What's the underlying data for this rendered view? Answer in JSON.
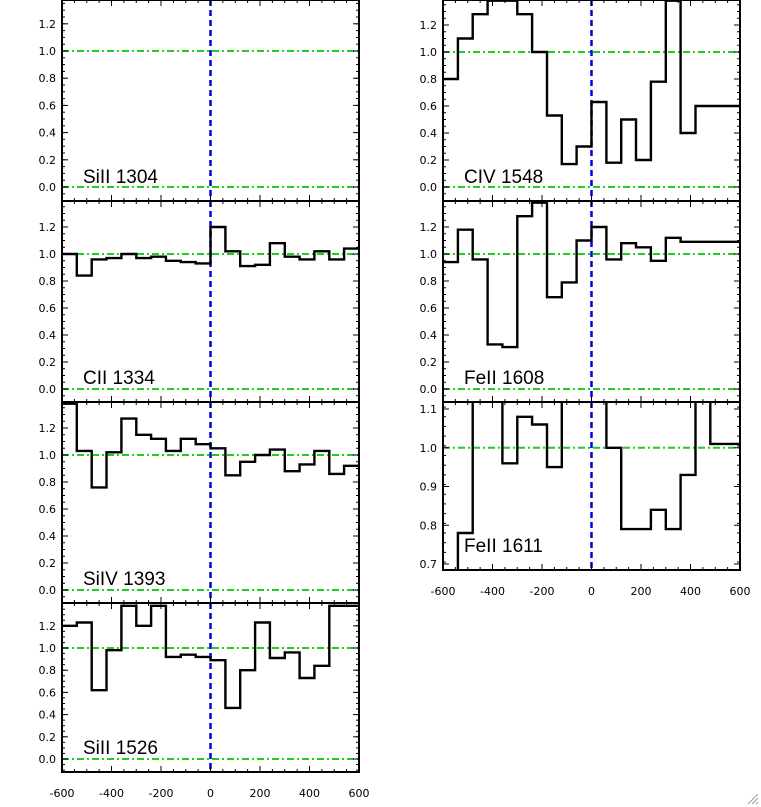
{
  "figure": {
    "corner_control": "resize-grip-icon"
  },
  "colors": {
    "spectrum": "#000000",
    "continuum": "#22cc22",
    "zero_velocity": "#0000dd"
  },
  "chart_data": [
    {
      "type": "line",
      "step": true,
      "label": "SiII 1304",
      "xlim": [
        -600,
        600
      ],
      "ylim": [
        -0.1,
        1.38
      ],
      "yticks": [
        "0.0",
        "0.2",
        "0.4",
        "0.6",
        "0.8",
        "1.0",
        "1.2"
      ],
      "ytick_values": [
        0,
        0.2,
        0.4,
        0.6,
        0.8,
        1.0,
        1.2
      ],
      "hlines": [
        0,
        1
      ],
      "vline": 0,
      "x": [],
      "y": []
    },
    {
      "type": "line",
      "step": true,
      "label": "CII 1334",
      "xlim": [
        -600,
        600
      ],
      "ylim": [
        -0.1,
        1.38
      ],
      "yticks": [
        "0.0",
        "0.2",
        "0.4",
        "0.6",
        "0.8",
        "1.0",
        "1.2"
      ],
      "ytick_values": [
        0,
        0.2,
        0.4,
        0.6,
        0.8,
        1.0,
        1.2
      ],
      "hlines": [
        0,
        1
      ],
      "vline": 0,
      "x": [
        -600,
        -540,
        -480,
        -420,
        -360,
        -300,
        -240,
        -180,
        -120,
        -60,
        0,
        60,
        120,
        180,
        240,
        300,
        360,
        420,
        480,
        540,
        600
      ],
      "y": [
        1.0,
        0.84,
        0.96,
        0.97,
        1.0,
        0.97,
        0.98,
        0.95,
        0.94,
        0.93,
        1.2,
        1.02,
        0.91,
        0.92,
        1.08,
        0.98,
        0.96,
        1.02,
        0.96,
        1.04,
        1.04
      ]
    },
    {
      "type": "line",
      "step": true,
      "label": "SiIV 1393",
      "xlim": [
        -600,
        600
      ],
      "ylim": [
        -0.1,
        1.38
      ],
      "yticks": [
        "0.0",
        "0.2",
        "0.4",
        "0.6",
        "0.8",
        "1.0",
        "1.2"
      ],
      "ytick_values": [
        0,
        0.2,
        0.4,
        0.6,
        0.8,
        1.0,
        1.2
      ],
      "hlines": [
        0,
        1
      ],
      "vline": 0,
      "x": [
        -600,
        -540,
        -480,
        -420,
        -360,
        -300,
        -240,
        -180,
        -120,
        -60,
        0,
        60,
        120,
        180,
        240,
        300,
        360,
        420,
        480,
        540,
        600
      ],
      "y": [
        1.38,
        1.03,
        0.76,
        1.02,
        1.27,
        1.15,
        1.12,
        1.03,
        1.12,
        1.08,
        1.05,
        0.85,
        0.95,
        1.0,
        1.04,
        0.88,
        0.93,
        1.03,
        0.86,
        0.92,
        0.92
      ]
    },
    {
      "type": "line",
      "step": true,
      "label": "SiII 1526",
      "xlim": [
        -600,
        600
      ],
      "ylim": [
        -0.1,
        1.38
      ],
      "yticks": [
        "0.0",
        "0.2",
        "0.4",
        "0.6",
        "0.8",
        "1.0",
        "1.2"
      ],
      "ytick_values": [
        0,
        0.2,
        0.4,
        0.6,
        0.8,
        1.0,
        1.2
      ],
      "hlines": [
        0,
        1
      ],
      "vline": 0,
      "x": [
        -600,
        -540,
        -480,
        -420,
        -360,
        -300,
        -240,
        -180,
        -120,
        -60,
        0,
        60,
        120,
        180,
        240,
        300,
        360,
        420,
        480,
        540,
        600
      ],
      "y": [
        1.2,
        1.23,
        0.62,
        0.98,
        1.38,
        1.2,
        1.38,
        0.92,
        0.94,
        0.92,
        0.89,
        0.46,
        0.8,
        1.23,
        0.91,
        0.96,
        0.73,
        0.84,
        1.38,
        1.38,
        1.38
      ],
      "xticks": [
        "-600",
        "-400",
        "-200",
        "0",
        "200",
        "400",
        "600"
      ],
      "xtick_values": [
        -600,
        -400,
        -200,
        0,
        200,
        400,
        600
      ]
    },
    {
      "type": "line",
      "step": true,
      "label": "CIV 1548",
      "xlim": [
        -600,
        600
      ],
      "ylim": [
        -0.1,
        1.38
      ],
      "yticks": [
        "0.0",
        "0.2",
        "0.4",
        "0.6",
        "0.8",
        "1.0",
        "1.2"
      ],
      "ytick_values": [
        0,
        0.2,
        0.4,
        0.6,
        0.8,
        1.0,
        1.2
      ],
      "hlines": [
        0,
        1
      ],
      "vline": 0,
      "x": [
        -600,
        -540,
        -480,
        -420,
        -360,
        -300,
        -240,
        -180,
        -120,
        -60,
        0,
        60,
        120,
        180,
        240,
        300,
        360,
        420,
        480,
        540,
        600
      ],
      "y": [
        0.8,
        1.1,
        1.28,
        1.38,
        1.38,
        1.28,
        1.0,
        0.53,
        0.17,
        0.3,
        0.63,
        0.18,
        0.5,
        0.2,
        0.78,
        1.38,
        0.4,
        0.6,
        0.6,
        0.6,
        0.6
      ]
    },
    {
      "type": "line",
      "step": true,
      "label": "FeII 1608",
      "xlim": [
        -600,
        600
      ],
      "ylim": [
        -0.1,
        1.38
      ],
      "yticks": [
        "0.0",
        "0.2",
        "0.4",
        "0.6",
        "0.8",
        "1.0",
        "1.2"
      ],
      "ytick_values": [
        0,
        0.2,
        0.4,
        0.6,
        0.8,
        1.0,
        1.2
      ],
      "hlines": [
        0,
        1
      ],
      "vline": 0,
      "x": [
        -600,
        -540,
        -480,
        -420,
        -360,
        -300,
        -240,
        -180,
        -120,
        -60,
        0,
        60,
        120,
        180,
        240,
        300,
        360,
        420,
        480,
        540,
        600
      ],
      "y": [
        0.94,
        1.18,
        0.96,
        0.33,
        0.31,
        1.28,
        1.38,
        0.68,
        0.79,
        1.1,
        1.2,
        0.96,
        1.08,
        1.05,
        0.95,
        1.12,
        1.09,
        1.09,
        1.09,
        1.09,
        1.09
      ]
    },
    {
      "type": "line",
      "step": true,
      "label": "FeII 1611",
      "xlim": [
        -600,
        600
      ],
      "ylim": [
        0.68,
        1.12
      ],
      "yticks": [
        "0.7",
        "0.8",
        "0.9",
        "1.0",
        "1.1"
      ],
      "ytick_values": [
        0.7,
        0.8,
        0.9,
        1.0,
        1.1
      ],
      "hlines": [
        1
      ],
      "vline": 0,
      "x": [
        -600,
        -540,
        -480,
        -420,
        -360,
        -300,
        -240,
        -180,
        -120,
        -60,
        0,
        60,
        120,
        180,
        240,
        300,
        360,
        420,
        480,
        540,
        600
      ],
      "y": [
        0.68,
        0.78,
        1.12,
        1.12,
        0.96,
        1.08,
        1.06,
        0.95,
        1.12,
        1.12,
        1.12,
        1.0,
        0.79,
        0.79,
        0.84,
        0.79,
        0.93,
        1.12,
        1.01,
        1.01,
        1.01
      ],
      "xticks": [
        "-600",
        "-400",
        "-200",
        "0",
        "200",
        "400",
        "600"
      ],
      "xtick_values": [
        -600,
        -400,
        -200,
        0,
        200,
        400,
        600
      ]
    }
  ]
}
